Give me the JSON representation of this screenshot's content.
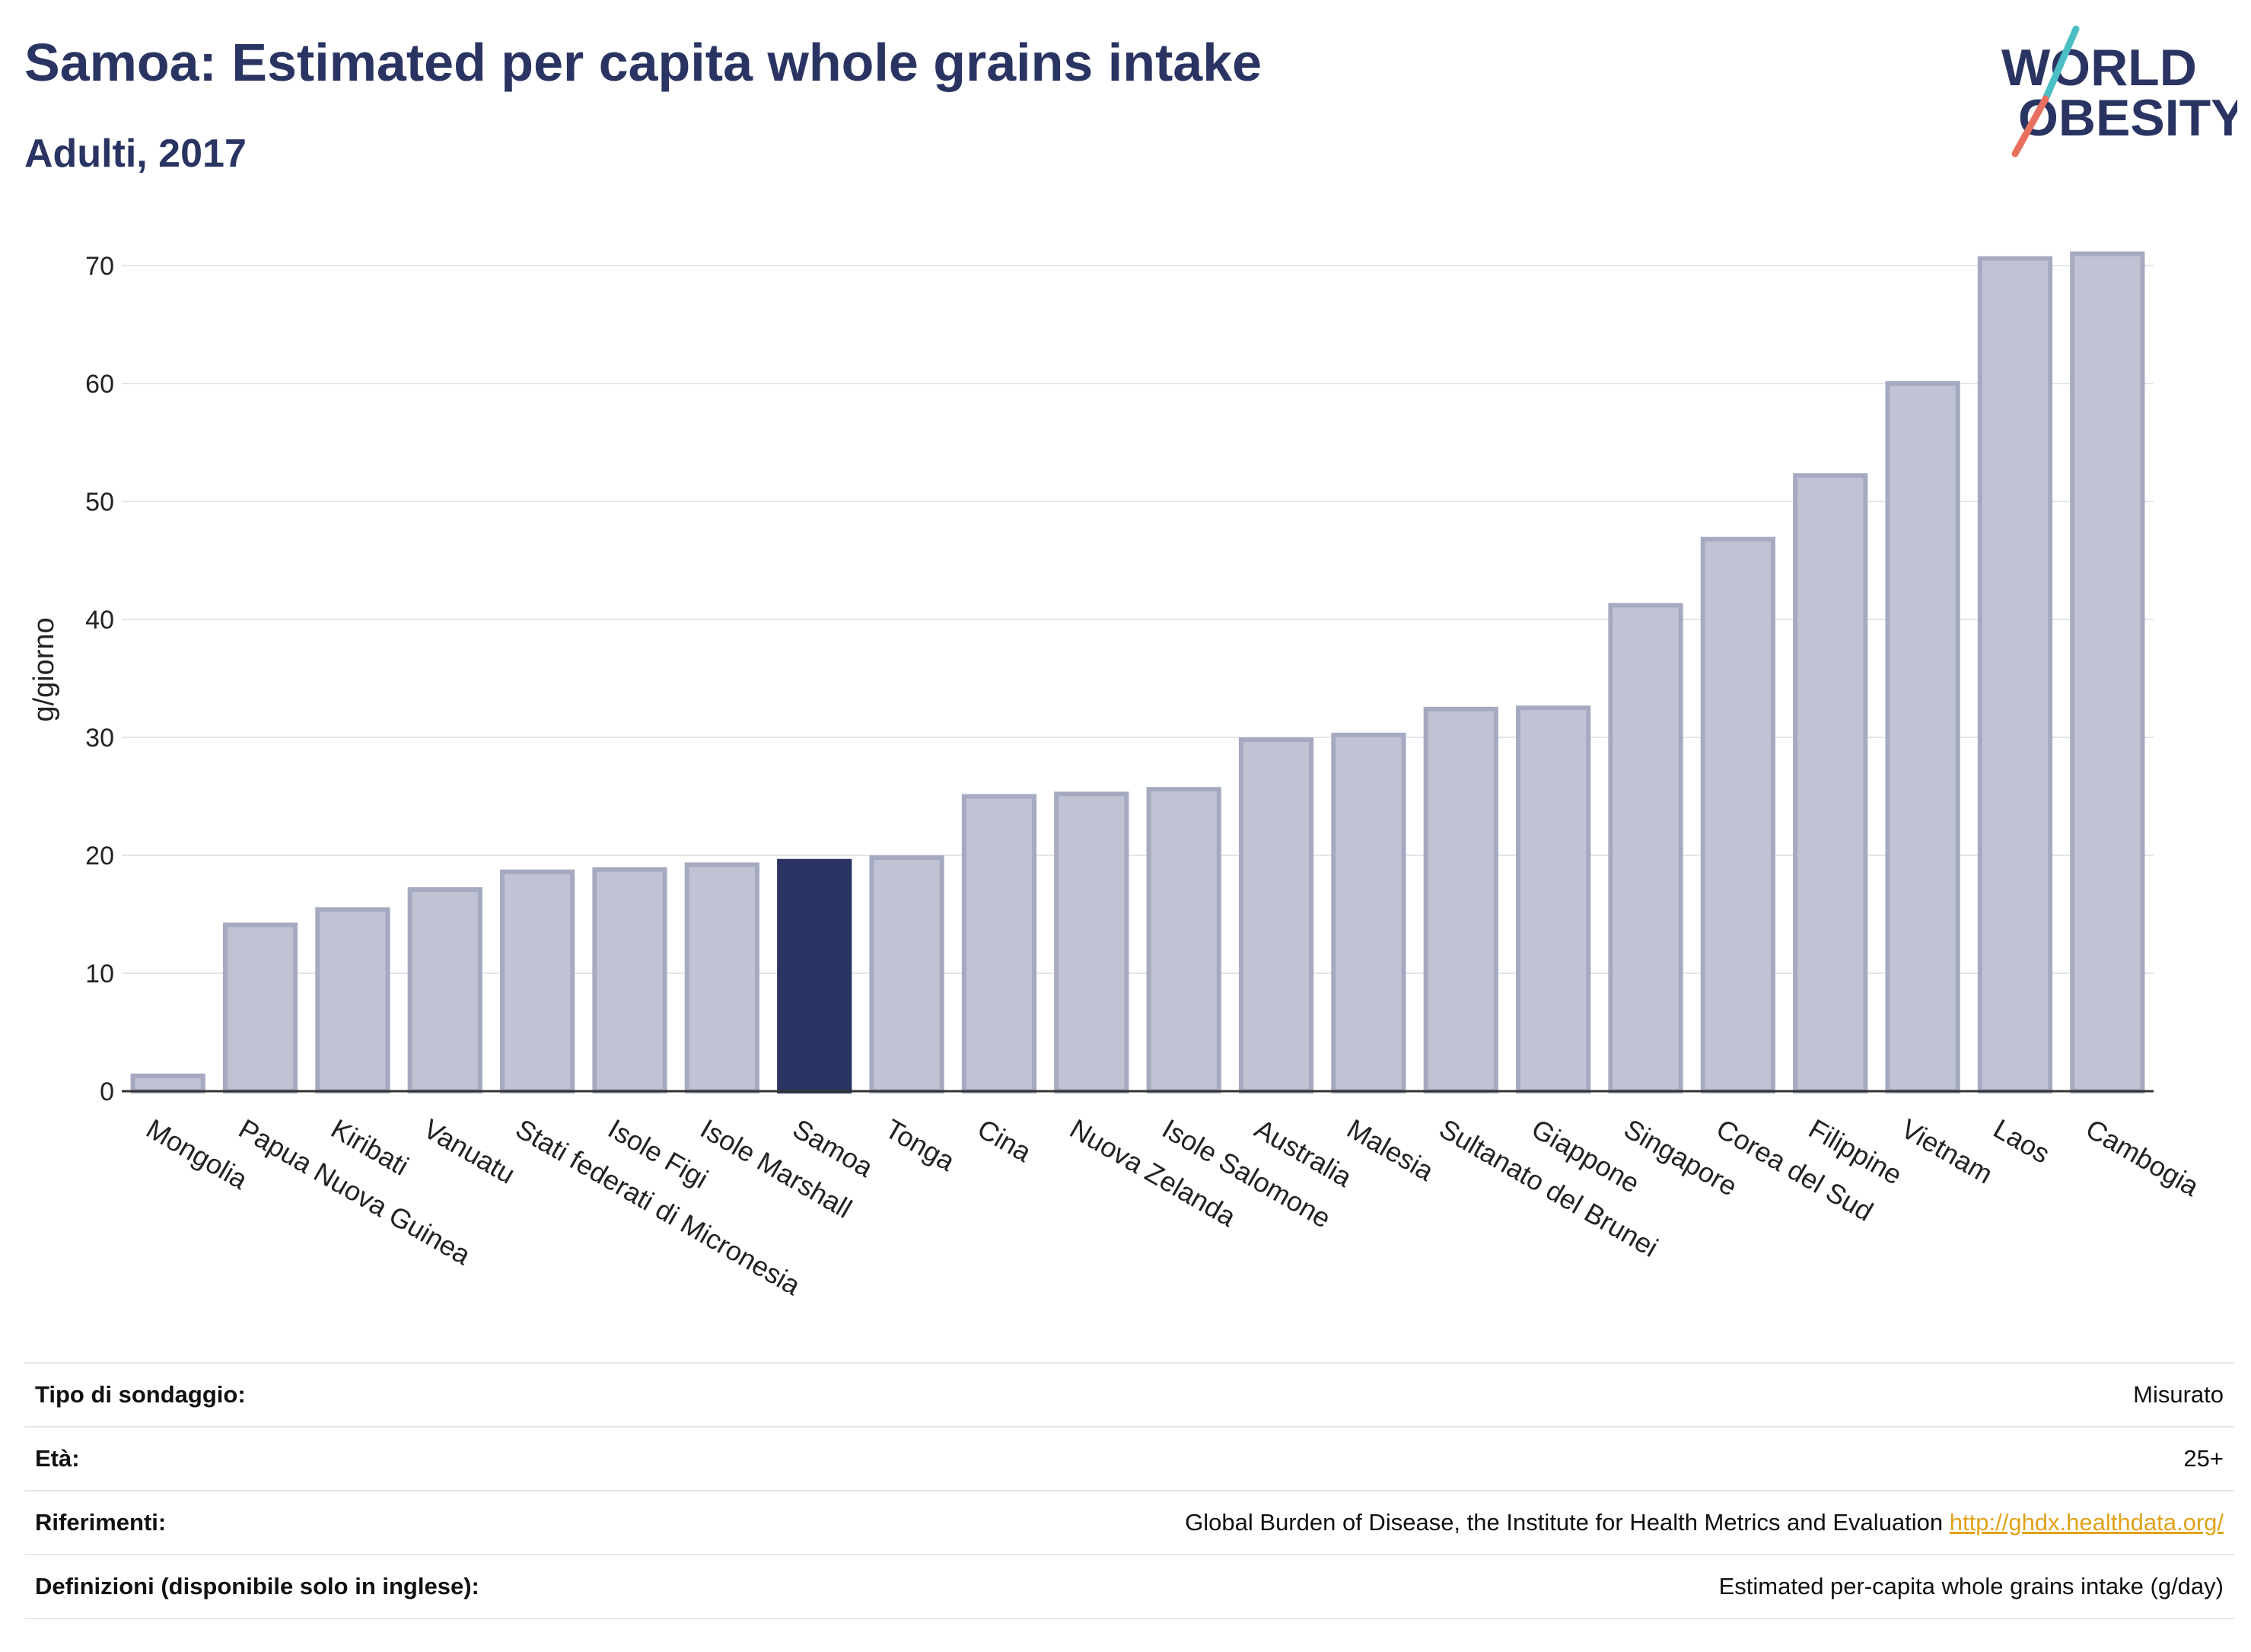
{
  "header": {
    "title": "Samoa: Estimated per capita whole grains intake",
    "subtitle": "Adulti, 2017",
    "logo_line1": "WORLD",
    "logo_line2": "OBESITY"
  },
  "colors": {
    "bar_default": "#c0c3d3",
    "bar_default_stroke": "#a5aac0",
    "bar_highlight": "#2a3462",
    "title": "#2a3462",
    "link": "#e0a21a",
    "logo_teal": "#4bbfc4",
    "logo_coral": "#e8705e"
  },
  "chart_data": {
    "type": "bar",
    "title": "Samoa: Estimated per capita whole grains intake",
    "subtitle": "Adulti, 2017",
    "xlabel": "",
    "ylabel": "g/giorno",
    "ylim": [
      0,
      72
    ],
    "yticks": [
      0,
      10,
      20,
      30,
      40,
      50,
      60,
      70
    ],
    "grid": true,
    "highlight": "Samoa",
    "categories": [
      "Mongolia",
      "Papua Nuova Guinea",
      "Kiribati",
      "Vanuatu",
      "Stati federati di Micronesia",
      "Isole Figi",
      "Isole Marshall",
      "Samoa",
      "Tonga",
      "Cina",
      "Nuova Zelanda",
      "Isole Salomone",
      "Australia",
      "Malesia",
      "Sultanato del Brunei",
      "Giappone",
      "Singapore",
      "Corea del Sud",
      "Filippine",
      "Vietnam",
      "Laos",
      "Cambogia"
    ],
    "values": [
      1.3,
      14.1,
      15.4,
      17.1,
      18.6,
      18.8,
      19.2,
      19.5,
      19.8,
      25.0,
      25.2,
      25.6,
      29.8,
      30.2,
      32.4,
      32.5,
      41.2,
      46.8,
      52.2,
      60.0,
      70.6,
      71.0
    ]
  },
  "info": {
    "rows": [
      {
        "label": "Tipo di sondaggio:",
        "value": "Misurato",
        "link": ""
      },
      {
        "label": "Età:",
        "value": "25+",
        "link": ""
      },
      {
        "label": "Riferimenti:",
        "value": "Global Burden of Disease, the Institute for Health Metrics and Evaluation",
        "link": "http://ghdx.healthdata.org/"
      },
      {
        "label": "Definizioni (disponibile solo in inglese):",
        "value": "Estimated per-capita whole grains intake (g/day)",
        "link": ""
      }
    ]
  }
}
